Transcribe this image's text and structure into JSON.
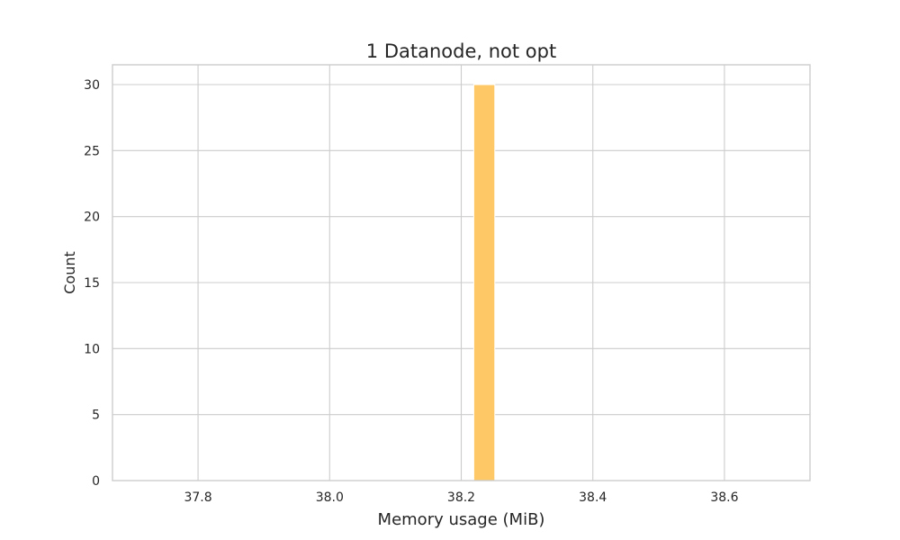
{
  "chart_data": {
    "type": "bar",
    "title": "1 Datanode, not opt",
    "xlabel": "Memory usage (MiB)",
    "ylabel": "Count",
    "xlim": [
      37.67,
      38.73
    ],
    "ylim": [
      0,
      31.5
    ],
    "xticks": [
      37.8,
      38.0,
      38.2,
      38.4,
      38.6
    ],
    "xtick_labels": [
      "37.8",
      "38.0",
      "38.2",
      "38.4",
      "38.6"
    ],
    "yticks": [
      0,
      5,
      10,
      15,
      20,
      25,
      30
    ],
    "ytick_labels": [
      "0",
      "5",
      "10",
      "15",
      "20",
      "25",
      "30"
    ],
    "grid": true,
    "bins": [
      {
        "x0": 38.219,
        "x1": 38.251,
        "count": 30
      }
    ],
    "bar_color": "#fdc865",
    "bar_edge_color": "#ffffff"
  }
}
